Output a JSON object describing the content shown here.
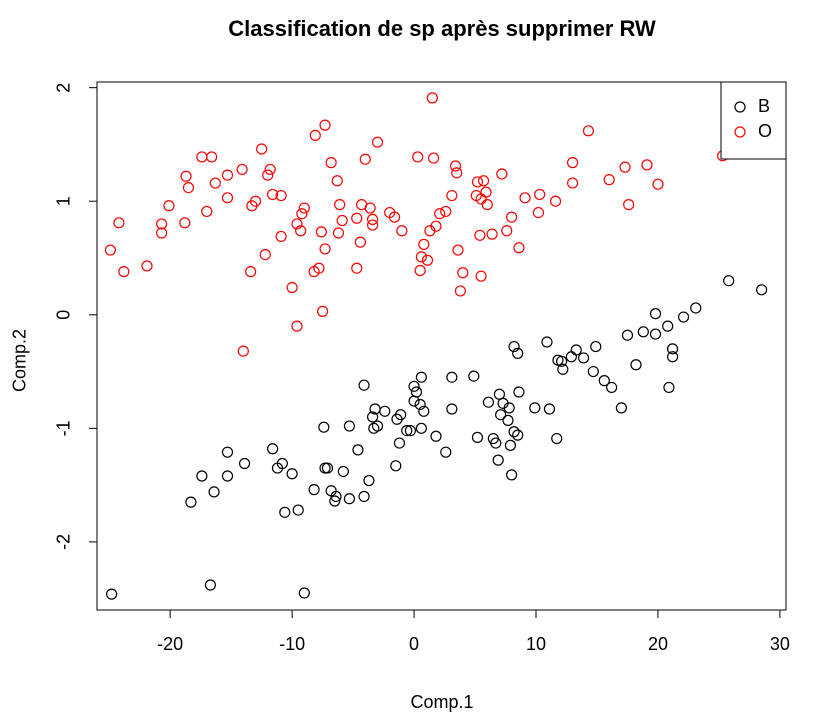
{
  "chart_data": {
    "type": "scatter",
    "title": "Classification de sp après supprimer RW",
    "xlabel": "Comp.1",
    "ylabel": "Comp.2",
    "xlim": [
      -26,
      30.5
    ],
    "ylim": [
      -2.6,
      2.05
    ],
    "xticks": [
      -20,
      -10,
      0,
      10,
      20,
      30
    ],
    "xtick_labels": [
      "-20",
      "-10",
      "0",
      "10",
      "20",
      "30"
    ],
    "yticks": [
      -2,
      -1,
      0,
      1,
      2
    ],
    "ytick_labels": [
      "-2",
      "-1",
      "0",
      "1",
      "2"
    ],
    "grid": false,
    "legend_position": "top-right",
    "series": [
      {
        "name": "B",
        "color": "#000000",
        "marker": "open-circle",
        "points": [
          [
            28.5,
            0.22
          ],
          [
            25.8,
            0.3
          ],
          [
            23.1,
            0.06
          ],
          [
            22.1,
            -0.02
          ],
          [
            21.2,
            -0.3
          ],
          [
            21.2,
            -0.37
          ],
          [
            20.8,
            -0.1
          ],
          [
            20.9,
            -0.64
          ],
          [
            19.8,
            0.01
          ],
          [
            19.8,
            -0.17
          ],
          [
            18.8,
            -0.15
          ],
          [
            18.2,
            -0.44
          ],
          [
            17.5,
            -0.18
          ],
          [
            17.0,
            -0.82
          ],
          [
            16.2,
            -0.64
          ],
          [
            15.6,
            -0.58
          ],
          [
            14.9,
            -0.28
          ],
          [
            14.7,
            -0.5
          ],
          [
            13.9,
            -0.38
          ],
          [
            13.3,
            -0.31
          ],
          [
            12.9,
            -0.37
          ],
          [
            12.2,
            -0.48
          ],
          [
            12.1,
            -0.41
          ],
          [
            11.8,
            -0.4
          ],
          [
            11.7,
            -1.09
          ],
          [
            11.1,
            -0.83
          ],
          [
            10.9,
            -0.24
          ],
          [
            9.9,
            -0.82
          ],
          [
            8.5,
            -0.34
          ],
          [
            8.6,
            -0.68
          ],
          [
            8.2,
            -0.28
          ],
          [
            8.2,
            -1.03
          ],
          [
            8.5,
            -1.06
          ],
          [
            8.0,
            -1.41
          ],
          [
            7.9,
            -1.15
          ],
          [
            7.7,
            -0.93
          ],
          [
            7.8,
            -0.82
          ],
          [
            7.3,
            -0.78
          ],
          [
            7.0,
            -0.7
          ],
          [
            7.1,
            -0.88
          ],
          [
            6.9,
            -1.28
          ],
          [
            6.7,
            -1.13
          ],
          [
            6.5,
            -1.09
          ],
          [
            6.1,
            -0.77
          ],
          [
            5.2,
            -1.08
          ],
          [
            4.9,
            -0.54
          ],
          [
            3.1,
            -0.55
          ],
          [
            3.1,
            -0.83
          ],
          [
            2.6,
            -1.21
          ],
          [
            1.8,
            -1.07
          ],
          [
            0.8,
            -0.85
          ],
          [
            0.6,
            -0.55
          ],
          [
            0.6,
            -1.0
          ],
          [
            0.5,
            -0.79
          ],
          [
            0.2,
            -0.68
          ],
          [
            0.0,
            -0.63
          ],
          [
            0.0,
            -0.76
          ],
          [
            -0.3,
            -1.02
          ],
          [
            -0.6,
            -1.02
          ],
          [
            -1.1,
            -0.88
          ],
          [
            -1.2,
            -1.13
          ],
          [
            -1.4,
            -0.92
          ],
          [
            -1.5,
            -1.33
          ],
          [
            -2.4,
            -0.85
          ],
          [
            -3.3,
            -1.0
          ],
          [
            -3.0,
            -0.98
          ],
          [
            -3.2,
            -0.83
          ],
          [
            -3.4,
            -0.9
          ],
          [
            -3.7,
            -1.46
          ],
          [
            -4.1,
            -0.62
          ],
          [
            -4.1,
            -1.6
          ],
          [
            -4.6,
            -1.19
          ],
          [
            -5.3,
            -0.98
          ],
          [
            -5.3,
            -1.62
          ],
          [
            -5.8,
            -1.38
          ],
          [
            -6.4,
            -1.6
          ],
          [
            -6.5,
            -1.64
          ],
          [
            -6.8,
            -1.55
          ],
          [
            -7.1,
            -1.35
          ],
          [
            -7.3,
            -1.35
          ],
          [
            -7.4,
            -0.99
          ],
          [
            -8.2,
            -1.54
          ],
          [
            -9.0,
            -2.45
          ],
          [
            -9.5,
            -1.72
          ],
          [
            -10.0,
            -1.4
          ],
          [
            -10.6,
            -1.74
          ],
          [
            -10.8,
            -1.31
          ],
          [
            -11.2,
            -1.35
          ],
          [
            -11.6,
            -1.18
          ],
          [
            -13.9,
            -1.31
          ],
          [
            -15.3,
            -1.21
          ],
          [
            -15.3,
            -1.42
          ],
          [
            -16.4,
            -1.56
          ],
          [
            -16.7,
            -2.38
          ],
          [
            -17.4,
            -1.42
          ],
          [
            -18.3,
            -1.65
          ],
          [
            -24.8,
            -2.46
          ]
        ]
      },
      {
        "name": "O",
        "color": "#ff0000",
        "marker": "open-circle",
        "points": [
          [
            25.3,
            1.4
          ],
          [
            20.0,
            1.15
          ],
          [
            19.1,
            1.32
          ],
          [
            17.6,
            0.97
          ],
          [
            17.3,
            1.3
          ],
          [
            16.0,
            1.19
          ],
          [
            14.3,
            1.62
          ],
          [
            13.0,
            1.34
          ],
          [
            13.0,
            1.16
          ],
          [
            11.6,
            1.0
          ],
          [
            10.3,
            1.06
          ],
          [
            10.2,
            0.9
          ],
          [
            9.1,
            1.03
          ],
          [
            8.6,
            0.59
          ],
          [
            8.0,
            0.86
          ],
          [
            7.6,
            0.74
          ],
          [
            7.2,
            1.24
          ],
          [
            6.4,
            0.71
          ],
          [
            6.0,
            0.97
          ],
          [
            5.9,
            1.08
          ],
          [
            5.7,
            1.18
          ],
          [
            5.5,
            1.02
          ],
          [
            5.4,
            0.7
          ],
          [
            5.5,
            0.34
          ],
          [
            5.2,
            1.17
          ],
          [
            5.1,
            1.05
          ],
          [
            4.0,
            0.37
          ],
          [
            3.8,
            0.21
          ],
          [
            3.6,
            0.57
          ],
          [
            3.5,
            1.25
          ],
          [
            3.4,
            1.31
          ],
          [
            3.1,
            1.05
          ],
          [
            2.6,
            0.91
          ],
          [
            2.1,
            0.89
          ],
          [
            1.8,
            0.78
          ],
          [
            1.6,
            1.38
          ],
          [
            1.5,
            1.91
          ],
          [
            1.3,
            0.74
          ],
          [
            1.1,
            0.48
          ],
          [
            0.8,
            0.62
          ],
          [
            0.6,
            0.51
          ],
          [
            0.5,
            0.39
          ],
          [
            0.3,
            1.39
          ],
          [
            -1.0,
            0.74
          ],
          [
            -1.6,
            0.86
          ],
          [
            -2.0,
            0.9
          ],
          [
            -3.0,
            1.52
          ],
          [
            -3.4,
            0.84
          ],
          [
            -3.4,
            0.79
          ],
          [
            -3.6,
            0.94
          ],
          [
            -4.0,
            1.37
          ],
          [
            -4.3,
            0.97
          ],
          [
            -4.4,
            0.64
          ],
          [
            -4.7,
            0.85
          ],
          [
            -4.7,
            0.41
          ],
          [
            -5.9,
            0.83
          ],
          [
            -6.2,
            0.72
          ],
          [
            -6.1,
            0.97
          ],
          [
            -6.3,
            1.18
          ],
          [
            -6.8,
            1.34
          ],
          [
            -7.3,
            0.58
          ],
          [
            -7.5,
            0.03
          ],
          [
            -7.6,
            0.73
          ],
          [
            -7.8,
            0.41
          ],
          [
            -7.3,
            1.67
          ],
          [
            -8.1,
            1.58
          ],
          [
            -8.2,
            0.38
          ],
          [
            -9.0,
            0.94
          ],
          [
            -9.2,
            0.89
          ],
          [
            -9.3,
            0.74
          ],
          [
            -9.6,
            0.8
          ],
          [
            -9.6,
            -0.1
          ],
          [
            -10.0,
            0.24
          ],
          [
            -10.9,
            0.69
          ],
          [
            -10.9,
            1.05
          ],
          [
            -11.6,
            1.06
          ],
          [
            -11.8,
            1.28
          ],
          [
            -12.0,
            1.23
          ],
          [
            -12.2,
            0.53
          ],
          [
            -12.5,
            1.46
          ],
          [
            -13.0,
            1.0
          ],
          [
            -13.3,
            0.96
          ],
          [
            -13.4,
            0.38
          ],
          [
            -14.0,
            -0.32
          ],
          [
            -14.1,
            1.28
          ],
          [
            -15.3,
            1.03
          ],
          [
            -15.3,
            1.23
          ],
          [
            -16.3,
            1.16
          ],
          [
            -16.6,
            1.39
          ],
          [
            -17.0,
            0.91
          ],
          [
            -17.4,
            1.39
          ],
          [
            -18.5,
            1.12
          ],
          [
            -18.7,
            1.22
          ],
          [
            -18.8,
            0.81
          ],
          [
            -20.1,
            0.96
          ],
          [
            -20.7,
            0.72
          ],
          [
            -20.7,
            0.8
          ],
          [
            -21.9,
            0.43
          ],
          [
            -23.8,
            0.38
          ],
          [
            -24.2,
            0.81
          ],
          [
            -24.9,
            0.57
          ]
        ]
      }
    ]
  }
}
